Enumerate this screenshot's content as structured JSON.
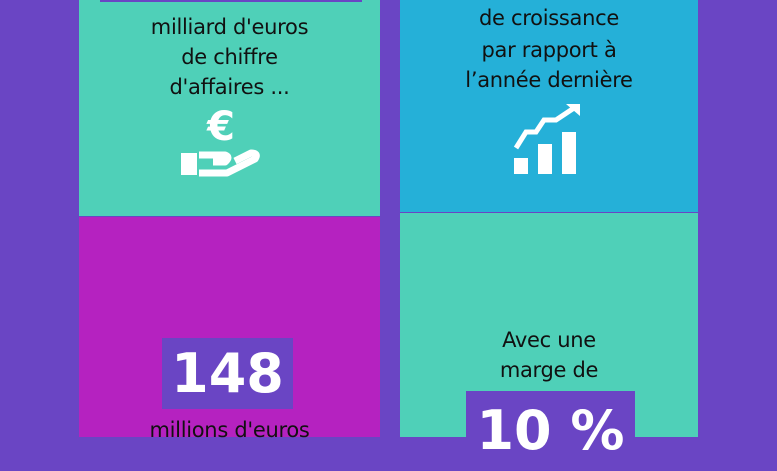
{
  "colors": {
    "background": "#6a45c4",
    "teal": "#4fd0b8",
    "blue": "#25b0d8",
    "magenta": "#b522c0"
  },
  "tiles": [
    {
      "text_lines": [
        "milliard d'euros",
        "de chiffre",
        "d'affaires ..."
      ],
      "icon": "euro-hand-icon"
    },
    {
      "text_lines": [
        "de croissance",
        "par rapport à",
        "l’année dernière"
      ],
      "icon": "growth-chart-icon"
    },
    {
      "value": "148",
      "text_lines": [
        "millions d'euros"
      ]
    },
    {
      "text_lines": [
        "Avec une",
        "marge de"
      ],
      "value": "10 %"
    }
  ]
}
